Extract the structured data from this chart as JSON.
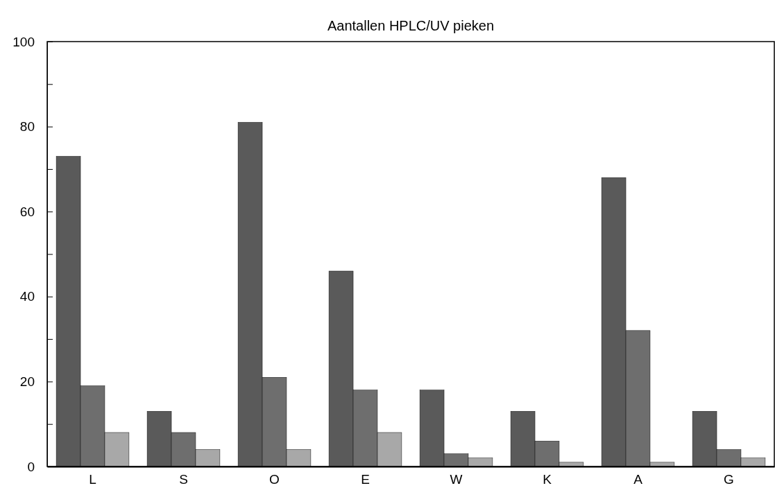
{
  "chart_data": {
    "type": "bar",
    "title": "Aantallen HPLC/UV pieken",
    "categories": [
      "L",
      "S",
      "O",
      "E",
      "W",
      "K",
      "A",
      "G"
    ],
    "series": [
      {
        "color": "#5a5a5a",
        "values": [
          73,
          13,
          81,
          46,
          18,
          13,
          68,
          13
        ]
      },
      {
        "color": "#6e6e6e",
        "values": [
          19,
          8,
          21,
          18,
          3,
          6,
          32,
          4
        ]
      },
      {
        "color": "#a8a8a8",
        "values": [
          8,
          4,
          4,
          8,
          2,
          1,
          1,
          2
        ]
      }
    ],
    "ylim": [
      0,
      100
    ],
    "yticks": [
      0,
      {
        "value": 10,
        "label": null
      },
      20,
      {
        "value": 30,
        "label": null
      },
      40,
      {
        "value": 50,
        "label": null
      },
      60,
      {
        "value": 70,
        "label": null
      },
      80,
      {
        "value": 90,
        "label": null
      },
      100
    ],
    "grid": false
  }
}
